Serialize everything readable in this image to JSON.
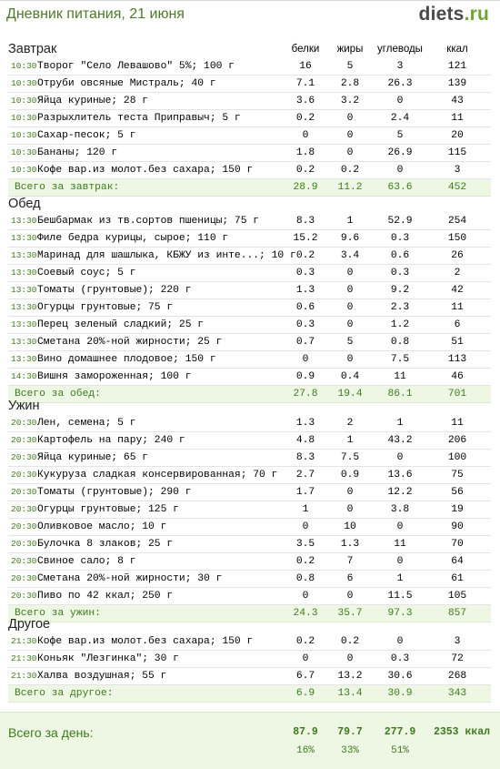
{
  "header": {
    "title": "Дневник питания, 21 июня",
    "logo_main": "diets",
    "logo_tld": ".ru"
  },
  "columns": {
    "protein": "белки",
    "fat": "жиры",
    "carbs": "углеводы",
    "kcal": "ккал"
  },
  "sections": [
    {
      "title": "Завтрак",
      "items": [
        {
          "time": "10:30",
          "name": "Творог \"Село Левашово\" 5%; 100 г",
          "p": "16",
          "f": "5",
          "c": "3",
          "k": "121"
        },
        {
          "time": "10:30",
          "name": "Отруби овсяные Мистраль; 40 г",
          "p": "7.1",
          "f": "2.8",
          "c": "26.3",
          "k": "139"
        },
        {
          "time": "10:30",
          "name": "Яйца куриные; 28 г",
          "p": "3.6",
          "f": "3.2",
          "c": "0",
          "k": "43"
        },
        {
          "time": "10:30",
          "name": "Разрыхлитель теста Приправыч; 5 г",
          "p": "0.2",
          "f": "0",
          "c": "2.4",
          "k": "11"
        },
        {
          "time": "10:30",
          "name": "Сахар-песок; 5 г",
          "p": "0",
          "f": "0",
          "c": "5",
          "k": "20"
        },
        {
          "time": "10:30",
          "name": "Бананы; 120 г",
          "p": "1.8",
          "f": "0",
          "c": "26.9",
          "k": "115"
        },
        {
          "time": "10:30",
          "name": "Кофе вар.из молот.без сахара; 150 г",
          "p": "0.2",
          "f": "0.2",
          "c": "0",
          "k": "3"
        }
      ],
      "total": {
        "label": "Всего за завтрак:",
        "p": "28.9",
        "f": "11.2",
        "c": "63.6",
        "k": "452"
      }
    },
    {
      "title": "Обед",
      "items": [
        {
          "time": "13:30",
          "name": "Бешбармак из тв.сортов пшеницы; 75 г",
          "p": "8.3",
          "f": "1",
          "c": "52.9",
          "k": "254"
        },
        {
          "time": "13:30",
          "name": "Филе бедра курицы, сырое; 110 г",
          "p": "15.2",
          "f": "9.6",
          "c": "0.3",
          "k": "150"
        },
        {
          "time": "13:30",
          "name": "Маринад для шашлыка, КБЖУ из инте...; 10 г",
          "p": "0.2",
          "f": "3.4",
          "c": "0.6",
          "k": "26"
        },
        {
          "time": "13:30",
          "name": "Соевый соус; 5 г",
          "p": "0.3",
          "f": "0",
          "c": "0.3",
          "k": "2"
        },
        {
          "time": "13:30",
          "name": "Томаты (грунтовые); 220 г",
          "p": "1.3",
          "f": "0",
          "c": "9.2",
          "k": "42"
        },
        {
          "time": "13:30",
          "name": "Огурцы грунтовые; 75 г",
          "p": "0.6",
          "f": "0",
          "c": "2.3",
          "k": "11"
        },
        {
          "time": "13:30",
          "name": "Перец зеленый сладкий; 25 г",
          "p": "0.3",
          "f": "0",
          "c": "1.2",
          "k": "6"
        },
        {
          "time": "13:30",
          "name": "Сметана 20%-ной жирности; 25 г",
          "p": "0.7",
          "f": "5",
          "c": "0.8",
          "k": "51"
        },
        {
          "time": "13:30",
          "name": "Вино домашнее плодовое; 150 г",
          "p": "0",
          "f": "0",
          "c": "7.5",
          "k": "113"
        },
        {
          "time": "14:30",
          "name": "Вишня замороженная; 100 г",
          "p": "0.9",
          "f": "0.4",
          "c": "11",
          "k": "46"
        }
      ],
      "total": {
        "label": "Всего за обед:",
        "p": "27.8",
        "f": "19.4",
        "c": "86.1",
        "k": "701"
      }
    },
    {
      "title": "Ужин",
      "items": [
        {
          "time": "20:30",
          "name": "Лен, семена; 5 г",
          "p": "1.3",
          "f": "2",
          "c": "1",
          "k": "11"
        },
        {
          "time": "20:30",
          "name": "Картофель на пару; 240 г",
          "p": "4.8",
          "f": "1",
          "c": "43.2",
          "k": "206"
        },
        {
          "time": "20:30",
          "name": "Яйца куриные; 65 г",
          "p": "8.3",
          "f": "7.5",
          "c": "0",
          "k": "100"
        },
        {
          "time": "20:30",
          "name": "Кукуруза сладкая консервированная; 70 г",
          "p": "2.7",
          "f": "0.9",
          "c": "13.6",
          "k": "75"
        },
        {
          "time": "20:30",
          "name": "Томаты (грунтовые); 290 г",
          "p": "1.7",
          "f": "0",
          "c": "12.2",
          "k": "56"
        },
        {
          "time": "20:30",
          "name": "Огурцы грунтовые; 125 г",
          "p": "1",
          "f": "0",
          "c": "3.8",
          "k": "19"
        },
        {
          "time": "20:30",
          "name": "Оливковое масло; 10 г",
          "p": "0",
          "f": "10",
          "c": "0",
          "k": "90"
        },
        {
          "time": "20:30",
          "name": "Булочка 8 злаков; 25 г",
          "p": "3.5",
          "f": "1.3",
          "c": "11",
          "k": "70"
        },
        {
          "time": "20:30",
          "name": "Свиное сало; 8 г",
          "p": "0.2",
          "f": "7",
          "c": "0",
          "k": "64"
        },
        {
          "time": "20:30",
          "name": "Сметана 20%-ной жирности; 30 г",
          "p": "0.8",
          "f": "6",
          "c": "1",
          "k": "61"
        },
        {
          "time": "20:30",
          "name": "Пиво по 42 ккал; 250 г",
          "p": "0",
          "f": "0",
          "c": "11.5",
          "k": "105"
        }
      ],
      "total": {
        "label": "Всего за ужин:",
        "p": "24.3",
        "f": "35.7",
        "c": "97.3",
        "k": "857"
      }
    },
    {
      "title": "Другое",
      "items": [
        {
          "time": "21:30",
          "name": "Кофе вар.из молот.без сахара; 150 г",
          "p": "0.2",
          "f": "0.2",
          "c": "0",
          "k": "3"
        },
        {
          "time": "21:30",
          "name": "Коньяк \"Лезгинка\"; 30 г",
          "p": "0",
          "f": "0",
          "c": "0.3",
          "k": "72"
        },
        {
          "time": "21:30",
          "name": "Халва воздушная; 55 г",
          "p": "6.7",
          "f": "13.2",
          "c": "30.6",
          "k": "268"
        }
      ],
      "total": {
        "label": "Всего за другое:",
        "p": "6.9",
        "f": "13.4",
        "c": "30.9",
        "k": "343"
      }
    }
  ],
  "day_total": {
    "label": "Всего за день:",
    "p": "87.9",
    "f": "79.7",
    "c": "277.9",
    "k": "2353 ккал",
    "p_pct": "16%",
    "f_pct": "33%",
    "c_pct": "51%"
  }
}
